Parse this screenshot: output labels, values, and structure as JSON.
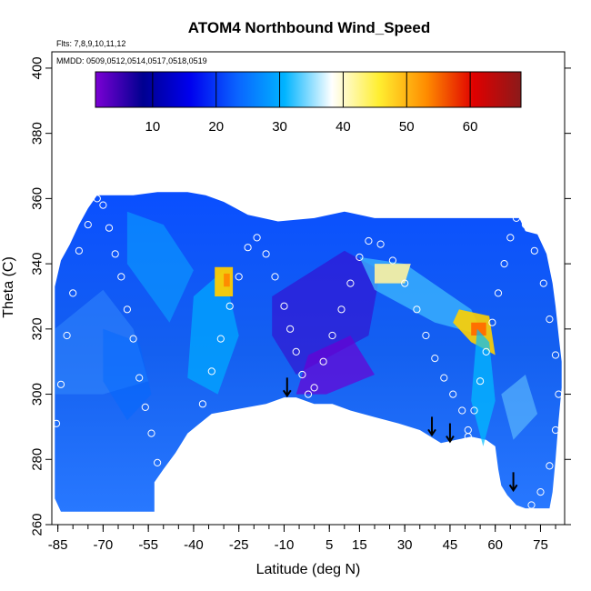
{
  "chart_data": {
    "type": "heatmap",
    "title": "ATOM4 Northbound Wind_Speed",
    "annotations": [
      "Flts: 7,8,9,10,11,12",
      "MMDD: 0509,0512,0514,0517,0518,0519"
    ],
    "xlabel": "Latitude (deg N)",
    "ylabel": "Theta (C)",
    "xlim": [
      -87,
      83
    ],
    "ylim": [
      260,
      405
    ],
    "x_ticks": [
      -85,
      -70,
      -55,
      -40,
      -25,
      -10,
      5,
      15,
      30,
      45,
      60,
      75
    ],
    "x_tick_labels": [
      "-85",
      "-70",
      "-55",
      "-40",
      "-25",
      "-10",
      "5",
      "15",
      "30",
      "45",
      "60",
      "75"
    ],
    "y_ticks": [
      260,
      280,
      300,
      320,
      340,
      360,
      380,
      400
    ],
    "y_tick_labels": [
      "260",
      "280",
      "300",
      "320",
      "340",
      "360",
      "380",
      "400"
    ],
    "colorbar": {
      "range": [
        1,
        68
      ],
      "ticks": [
        10,
        20,
        30,
        40,
        50,
        60
      ],
      "tick_labels": [
        "10",
        "20",
        "30",
        "40",
        "50",
        "60"
      ],
      "placement": "top, inside plot",
      "colors": [
        "#7b00d4",
        "#000090",
        "#0000ee",
        "#0a64ff",
        "#00b4ff",
        "#ffffff",
        "#ffee30",
        "#ff8c00",
        "#e00000",
        "#8b1a1a"
      ]
    },
    "flight_tracks": [
      {
        "flight": 1,
        "points": [
          [
            -85.5,
            291
          ],
          [
            -84,
            303
          ],
          [
            -82,
            318
          ],
          [
            -80,
            331
          ],
          [
            -78,
            344
          ],
          [
            -75,
            352
          ],
          [
            -72,
            360
          ],
          [
            -70,
            358
          ],
          [
            -68,
            351
          ],
          [
            -66,
            343
          ],
          [
            -64,
            336
          ],
          [
            -62,
            326
          ],
          [
            -60,
            317
          ],
          [
            -58,
            305
          ],
          [
            -56,
            296
          ],
          [
            -54,
            288
          ],
          [
            -52,
            279
          ],
          [
            -50,
            270
          ],
          [
            -47,
            264
          ]
        ]
      },
      {
        "flight": 2,
        "points": [
          [
            -46,
            266
          ],
          [
            -43,
            276
          ],
          [
            -40,
            287
          ],
          [
            -37,
            297
          ],
          [
            -34,
            307
          ],
          [
            -31,
            317
          ],
          [
            -28,
            327
          ],
          [
            -25,
            336
          ],
          [
            -22,
            345
          ],
          [
            -19,
            348
          ],
          [
            -16,
            343
          ],
          [
            -13,
            336
          ],
          [
            -10,
            327
          ],
          [
            -8,
            320
          ],
          [
            -6,
            313
          ],
          [
            -4,
            306
          ],
          [
            -2,
            300
          ]
        ]
      },
      {
        "flight": 3,
        "points": [
          [
            0,
            302
          ],
          [
            3,
            310
          ],
          [
            6,
            318
          ],
          [
            9,
            326
          ],
          [
            12,
            334
          ],
          [
            15,
            342
          ],
          [
            18,
            347
          ],
          [
            22,
            346
          ],
          [
            26,
            341
          ],
          [
            30,
            334
          ],
          [
            34,
            326
          ],
          [
            37,
            318
          ],
          [
            40,
            311
          ],
          [
            43,
            305
          ],
          [
            46,
            300
          ],
          [
            49,
            295
          ],
          [
            51,
            289
          ]
        ]
      },
      {
        "flight": 4,
        "points": [
          [
            51,
            287
          ],
          [
            53,
            295
          ],
          [
            55,
            304
          ],
          [
            57,
            313
          ],
          [
            59,
            322
          ],
          [
            61,
            331
          ],
          [
            63,
            340
          ],
          [
            65,
            348
          ],
          [
            67,
            354
          ],
          [
            70,
            352
          ],
          [
            73,
            344
          ],
          [
            76,
            334
          ],
          [
            78,
            323
          ],
          [
            80,
            312
          ],
          [
            81,
            300
          ],
          [
            80,
            289
          ],
          [
            78,
            278
          ],
          [
            75,
            270
          ],
          [
            72,
            266
          ]
        ]
      }
    ],
    "profile_markers": [
      {
        "lat": -9,
        "theta": 299.5
      },
      {
        "lat": 39,
        "theta": 287.5
      },
      {
        "lat": 45,
        "theta": 285.5
      },
      {
        "lat": 66,
        "theta": 270.5
      }
    ]
  }
}
